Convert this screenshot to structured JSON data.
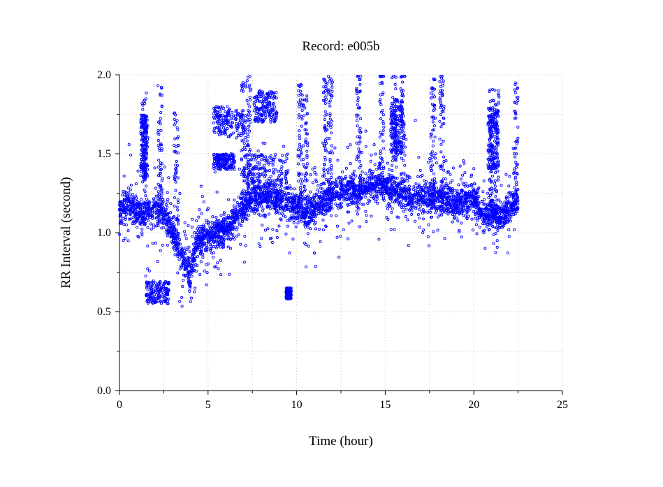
{
  "chart_data": {
    "type": "scatter",
    "title": "Record:  e005b",
    "xlabel": "Time (hour)",
    "ylabel": "RR Interval (second)",
    "xlim": [
      0,
      25
    ],
    "ylim": [
      0.0,
      2.0
    ],
    "x_ticks": [
      0,
      5,
      10,
      15,
      20,
      25
    ],
    "x_tick_labels": [
      "0",
      "5",
      "10",
      "15",
      "20",
      "25"
    ],
    "y_ticks": [
      0.0,
      0.5,
      1.0,
      1.5,
      2.0
    ],
    "y_tick_labels": [
      "0.0",
      "0.5",
      "1.0",
      "1.5",
      "2.0"
    ],
    "x_minor_ticks": [
      2.5,
      7.5,
      12.5,
      17.5,
      22.5
    ],
    "y_minor_ticks": [
      0.25,
      0.75,
      1.25,
      1.75
    ],
    "grid": true,
    "marker": "open-circle",
    "point_color": "#0000ff",
    "series": [
      {
        "x_start": 0.0,
        "x_end": 22.5,
        "baseline": [
          [
            0.0,
            1.15
          ],
          [
            0.5,
            1.17
          ],
          [
            1.0,
            1.13
          ],
          [
            1.5,
            1.12
          ],
          [
            2.0,
            1.15
          ],
          [
            2.5,
            1.12
          ],
          [
            3.0,
            1.0
          ],
          [
            3.5,
            0.85
          ],
          [
            4.0,
            0.72
          ],
          [
            4.3,
            0.93
          ],
          [
            5.0,
            0.98
          ],
          [
            6.0,
            1.02
          ],
          [
            6.7,
            1.1
          ],
          [
            7.0,
            1.16
          ],
          [
            7.5,
            1.22
          ],
          [
            8.0,
            1.24
          ],
          [
            9.0,
            1.22
          ],
          [
            9.5,
            1.19
          ],
          [
            10.2,
            1.16
          ],
          [
            10.5,
            1.1
          ],
          [
            11.0,
            1.16
          ],
          [
            11.5,
            1.19
          ],
          [
            12.0,
            1.24
          ],
          [
            12.5,
            1.25
          ],
          [
            13.0,
            1.29
          ],
          [
            13.5,
            1.25
          ],
          [
            14.0,
            1.3
          ],
          [
            14.5,
            1.31
          ],
          [
            15.0,
            1.29
          ],
          [
            15.5,
            1.26
          ],
          [
            16.0,
            1.24
          ],
          [
            16.5,
            1.22
          ],
          [
            17.0,
            1.23
          ],
          [
            17.5,
            1.23
          ],
          [
            18.0,
            1.21
          ],
          [
            18.5,
            1.22
          ],
          [
            19.0,
            1.19
          ],
          [
            19.5,
            1.2
          ],
          [
            20.0,
            1.24
          ],
          [
            20.5,
            1.1
          ],
          [
            21.0,
            1.12
          ],
          [
            21.5,
            1.1
          ],
          [
            22.0,
            1.15
          ],
          [
            22.5,
            1.2
          ]
        ],
        "clusters": [
          {
            "x": [
              1.2,
              1.6
            ],
            "y": [
              1.35,
              1.75
            ]
          },
          {
            "x": [
              1.5,
              2.8
            ],
            "y": [
              0.55,
              0.7
            ]
          },
          {
            "x": [
              5.3,
              7.0
            ],
            "y": [
              1.6,
              1.8
            ]
          },
          {
            "x": [
              7.6,
              8.9
            ],
            "y": [
              1.7,
              1.9
            ]
          },
          {
            "x": [
              5.3,
              6.5
            ],
            "y": [
              1.4,
              1.5
            ]
          },
          {
            "x": [
              7.0,
              9.5
            ],
            "y": [
              1.28,
              1.5
            ]
          },
          {
            "x": [
              15.3,
              16.0
            ],
            "y": [
              1.5,
              1.85
            ]
          },
          {
            "x": [
              20.8,
              21.4
            ],
            "y": [
              1.4,
              1.8
            ]
          },
          {
            "x": [
              9.4,
              9.7
            ],
            "y": [
              0.58,
              0.65
            ]
          }
        ]
      }
    ]
  }
}
